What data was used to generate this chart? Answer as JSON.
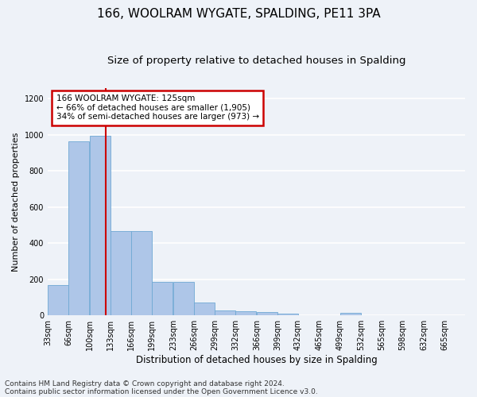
{
  "title1": "166, WOOLRAM WYGATE, SPALDING, PE11 3PA",
  "title2": "Size of property relative to detached houses in Spalding",
  "xlabel": "Distribution of detached houses by size in Spalding",
  "ylabel": "Number of detached properties",
  "footer1": "Contains HM Land Registry data © Crown copyright and database right 2024.",
  "footer2": "Contains public sector information licensed under the Open Government Licence v3.0.",
  "annotation_line1": "166 WOOLRAM WYGATE: 125sqm",
  "annotation_line2": "← 66% of detached houses are smaller (1,905)",
  "annotation_line3": "34% of semi-detached houses are larger (973) →",
  "bar_color": "#aec6e8",
  "bar_edge_color": "#6fa8d4",
  "vline_color": "#cc0000",
  "vline_x": 125,
  "annotation_box_color": "#cc0000",
  "bin_edges": [
    33,
    66,
    100,
    133,
    166,
    199,
    233,
    266,
    299,
    332,
    366,
    399,
    432,
    465,
    499,
    532,
    565,
    598,
    632,
    665,
    698
  ],
  "bar_values": [
    170,
    965,
    995,
    468,
    468,
    185,
    185,
    72,
    27,
    25,
    18,
    10,
    0,
    0,
    13,
    0,
    0,
    0,
    0,
    0
  ],
  "ylim": [
    0,
    1260
  ],
  "yticks": [
    0,
    200,
    400,
    600,
    800,
    1000,
    1200
  ],
  "background_color": "#eef2f8",
  "plot_background": "#eef2f8",
  "grid_color": "#ffffff",
  "title1_fontsize": 11,
  "title2_fontsize": 9.5,
  "xlabel_fontsize": 8.5,
  "ylabel_fontsize": 8,
  "tick_fontsize": 7,
  "footer_fontsize": 6.5,
  "annotation_fontsize": 7.5
}
